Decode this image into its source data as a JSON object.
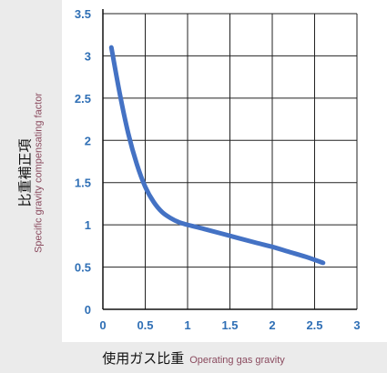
{
  "chart_data": {
    "type": "line",
    "title": "",
    "xlabel": "使用ガス比重",
    "xlabel_en": "Operating gas gravity",
    "ylabel": "比重補正項",
    "ylabel_en": "Specific gravity compensating factor",
    "xlim": [
      0,
      3
    ],
    "ylim": [
      0,
      3.5
    ],
    "x_ticks": [
      "0",
      "0.5",
      "1",
      "1.5",
      "2",
      "2.5",
      "3"
    ],
    "y_ticks": [
      "0",
      "0.5",
      "1",
      "1.5",
      "2",
      "2.5",
      "3",
      "3.5"
    ],
    "grid": true,
    "legend": "none",
    "series": [
      {
        "color": "#4472c4",
        "x": [
          0.1,
          0.2,
          0.3,
          0.4,
          0.5,
          0.6,
          0.7,
          0.8,
          0.9,
          1.0,
          1.2,
          1.5,
          1.8,
          2.0,
          2.2,
          2.4,
          2.6
        ],
        "y": [
          3.1,
          2.55,
          2.08,
          1.72,
          1.45,
          1.27,
          1.15,
          1.08,
          1.03,
          1.0,
          0.95,
          0.87,
          0.79,
          0.74,
          0.68,
          0.62,
          0.55
        ]
      }
    ]
  }
}
